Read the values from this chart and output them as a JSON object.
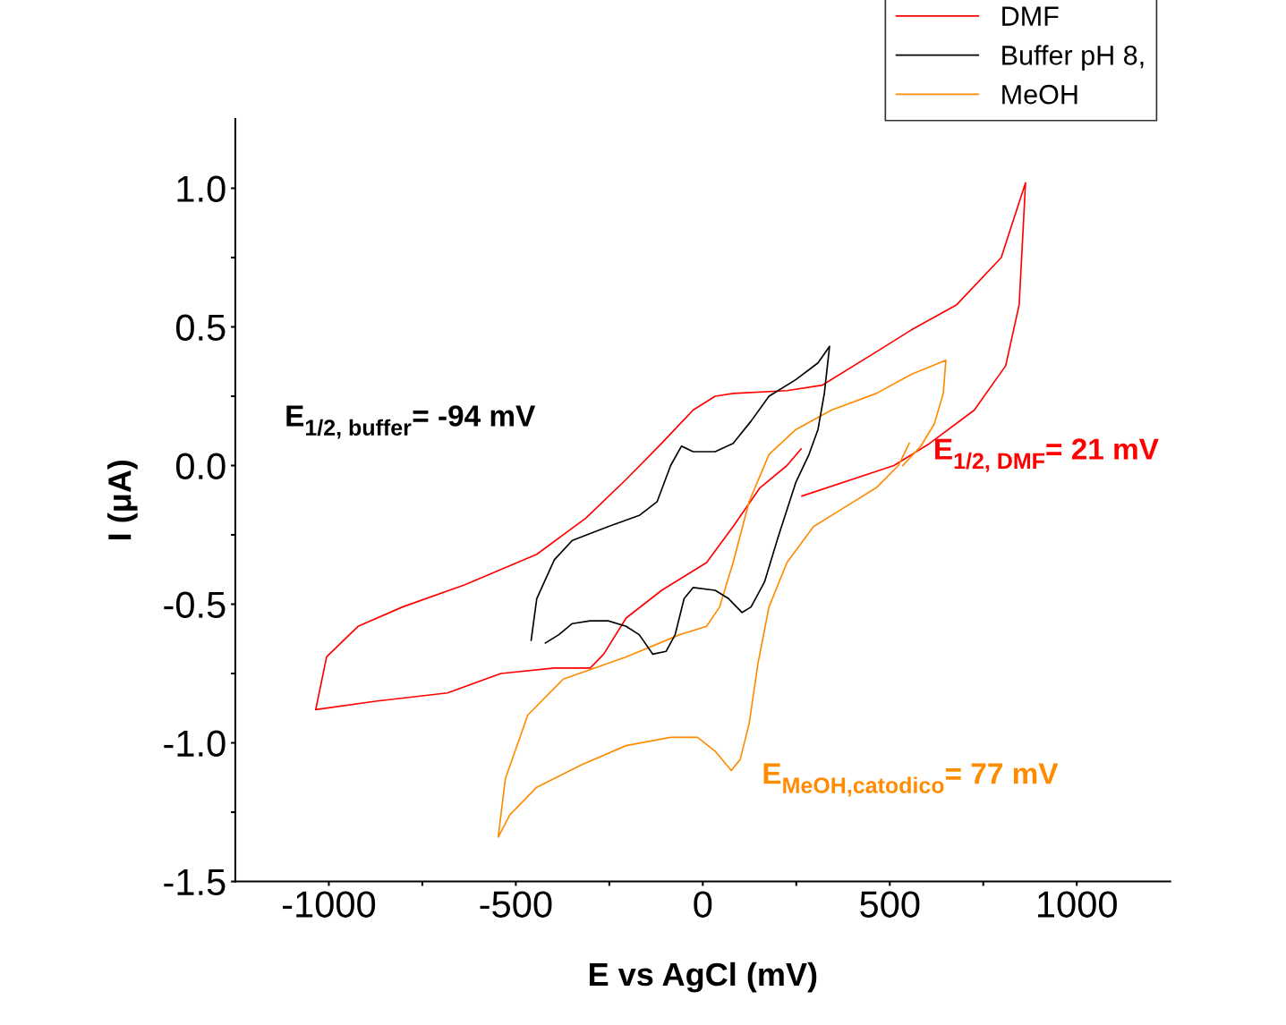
{
  "chart_data": {
    "type": "line",
    "xlabel": "E vs AgCl (mV)",
    "ylabel": "I (μA)",
    "xlim": [
      -1250,
      1250
    ],
    "ylim": [
      -1.5,
      1.25
    ],
    "xticks": [
      -1000,
      {
        "value": -750,
        "label": null
      },
      -500,
      {
        "value": -250,
        "label": null
      },
      0,
      {
        "value": 250,
        "label": null
      },
      500,
      {
        "value": 750,
        "label": null
      },
      1000
    ],
    "yticks": [
      {
        "value": -1.5,
        "label": "-1.5"
      },
      {
        "value": -1.25,
        "label": null
      },
      {
        "value": -1.0,
        "label": "-1.0"
      },
      {
        "value": -0.75,
        "label": null
      },
      {
        "value": -0.5,
        "label": "-0.5"
      },
      {
        "value": -0.25,
        "label": null
      },
      {
        "value": 0,
        "label": "0.0"
      },
      {
        "value": 0.25,
        "label": null
      },
      {
        "value": 0.5,
        "label": "0.5"
      },
      {
        "value": 0.75,
        "label": null
      },
      {
        "value": 1.0,
        "label": "1.0"
      }
    ],
    "grid": false,
    "legend": "top right",
    "marker": "none",
    "line_style": "solid",
    "annotations": [
      "E$_{1/2, buffer}$= -94 mV",
      "E$_{1/2, DMF}$= 21 mV",
      "E$_{MeOH,catodico}$= 77 mV"
    ],
    "series": [
      {
        "name": "DMF",
        "color": "#ff0000",
        "x": [
          265,
          511,
          607,
          726,
          810,
          846,
          863,
          798,
          679,
          559,
          464,
          320,
          225,
          81,
          33,
          -26,
          -110,
          -205,
          -313,
          -444,
          -636,
          -803,
          -922,
          -1006,
          -1035,
          -875,
          -683,
          -540,
          -397,
          -301,
          -265,
          -205,
          -110,
          10,
          81,
          153,
          225,
          263
        ],
        "values": [
          -0.11,
          0.0,
          0.08,
          0.2,
          0.36,
          0.58,
          1.02,
          0.75,
          0.58,
          0.49,
          0.41,
          0.29,
          0.27,
          0.26,
          0.25,
          0.2,
          0.08,
          -0.05,
          -0.19,
          -0.32,
          -0.43,
          -0.51,
          -0.58,
          -0.69,
          -0.88,
          -0.85,
          -0.82,
          -0.75,
          -0.73,
          -0.73,
          -0.68,
          -0.55,
          -0.45,
          -0.35,
          -0.22,
          -0.08,
          0.0,
          0.06
        ]
      },
      {
        "name": "Buffer pH 8,",
        "color": "#000000",
        "x": [
          -459,
          -444,
          -397,
          -349,
          -253,
          -170,
          -122,
          -86,
          -57,
          -26,
          33,
          81,
          129,
          177,
          249,
          308,
          339,
          325,
          308,
          284,
          249,
          201,
          165,
          129,
          105,
          69,
          33,
          -26,
          -50,
          -74,
          -98,
          -134,
          -170,
          -205,
          -253,
          -301,
          -349,
          -385,
          -421
        ],
        "values": [
          -0.63,
          -0.48,
          -0.34,
          -0.27,
          -0.22,
          -0.18,
          -0.13,
          0.0,
          0.07,
          0.05,
          0.05,
          0.08,
          0.16,
          0.25,
          0.31,
          0.37,
          0.43,
          0.26,
          0.13,
          0.04,
          -0.06,
          -0.26,
          -0.42,
          -0.51,
          -0.53,
          -0.48,
          -0.45,
          -0.44,
          -0.48,
          -0.61,
          -0.67,
          -0.68,
          -0.61,
          -0.58,
          -0.56,
          -0.56,
          -0.57,
          -0.61,
          -0.64
        ]
      },
      {
        "name": "MeOH",
        "color": "#ff8c00",
        "x": [
          552,
          523,
          464,
          368,
          296,
          225,
          177,
          148,
          124,
          100,
          76,
          33,
          -14,
          -86,
          -205,
          -325,
          -444,
          -516,
          -547,
          -528,
          -468,
          -373,
          -205,
          -62,
          10,
          45,
          81,
          124,
          177,
          249,
          344,
          464,
          559,
          650,
          643,
          619,
          583,
          535
        ],
        "values": [
          0.08,
          0.0,
          -0.08,
          -0.16,
          -0.22,
          -0.35,
          -0.51,
          -0.71,
          -0.93,
          -1.06,
          -1.1,
          -1.03,
          -0.98,
          -0.98,
          -1.01,
          -1.08,
          -1.16,
          -1.26,
          -1.34,
          -1.13,
          -0.9,
          -0.77,
          -0.69,
          -0.61,
          -0.58,
          -0.51,
          -0.35,
          -0.13,
          0.04,
          0.13,
          0.2,
          0.26,
          0.33,
          0.38,
          0.26,
          0.15,
          0.07,
          0.0
        ]
      }
    ]
  }
}
